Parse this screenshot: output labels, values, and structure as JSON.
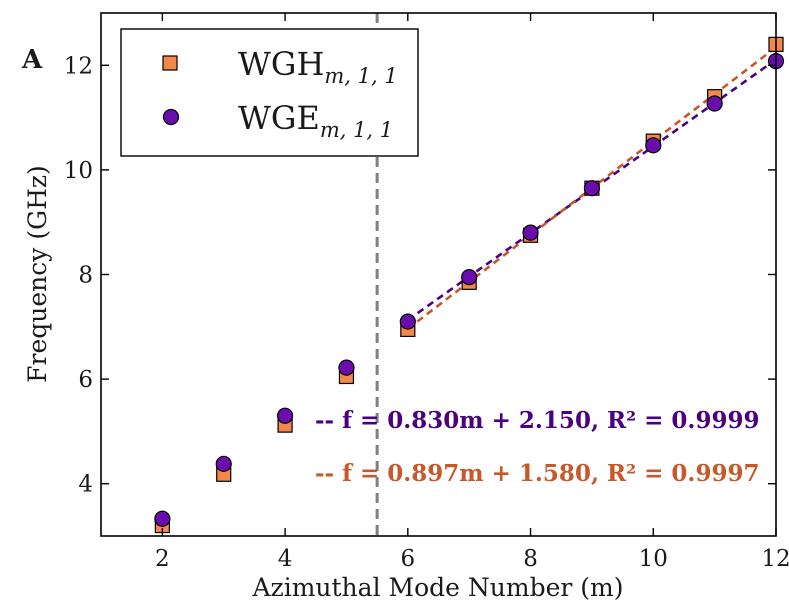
{
  "chart_data": {
    "type": "scatter",
    "panel_label": "A",
    "xlabel": "Azimuthal Mode Number (m)",
    "ylabel": "Frequency (GHz)",
    "xlim": [
      1,
      12
    ],
    "ylim": [
      3,
      13
    ],
    "xticks": [
      2,
      4,
      6,
      8,
      10,
      12
    ],
    "yticks": [
      4,
      6,
      8,
      10,
      12
    ],
    "vline_x": 5.5,
    "legend_position": "top-left",
    "series": [
      {
        "name": "WGH_{m,1,1}",
        "legend_main": "WGH",
        "legend_sub": "m, 1, 1",
        "marker": "square",
        "color": "#f4874b",
        "x": [
          2,
          3,
          4,
          5,
          6,
          7,
          8,
          9,
          10,
          11,
          12
        ],
        "y": [
          3.2,
          4.18,
          5.12,
          6.05,
          6.95,
          7.85,
          8.75,
          9.65,
          10.55,
          11.4,
          12.4
        ]
      },
      {
        "name": "WGE_{m,1,1}",
        "legend_main": "WGE",
        "legend_sub": "m, 1, 1",
        "marker": "circle",
        "color": "#6a0dad",
        "x": [
          2,
          3,
          4,
          5,
          6,
          7,
          8,
          9,
          10,
          11,
          12
        ],
        "y": [
          3.33,
          4.38,
          5.3,
          6.22,
          7.1,
          7.95,
          8.8,
          9.65,
          10.47,
          11.27,
          12.08
        ]
      }
    ],
    "fits": [
      {
        "series": "WGE_{m,1,1}",
        "slope": 0.83,
        "intercept": 2.15,
        "x_range": [
          6,
          12
        ],
        "color": "#4b0082",
        "label": "-- f = 0.830m + 2.150, R² = 0.9999"
      },
      {
        "series": "WGH_{m,1,1}",
        "slope": 0.897,
        "intercept": 1.58,
        "x_range": [
          6,
          12
        ],
        "color": "#c8582a",
        "label": "-- f = 0.897m + 1.580, R² = 0.9997"
      }
    ]
  }
}
